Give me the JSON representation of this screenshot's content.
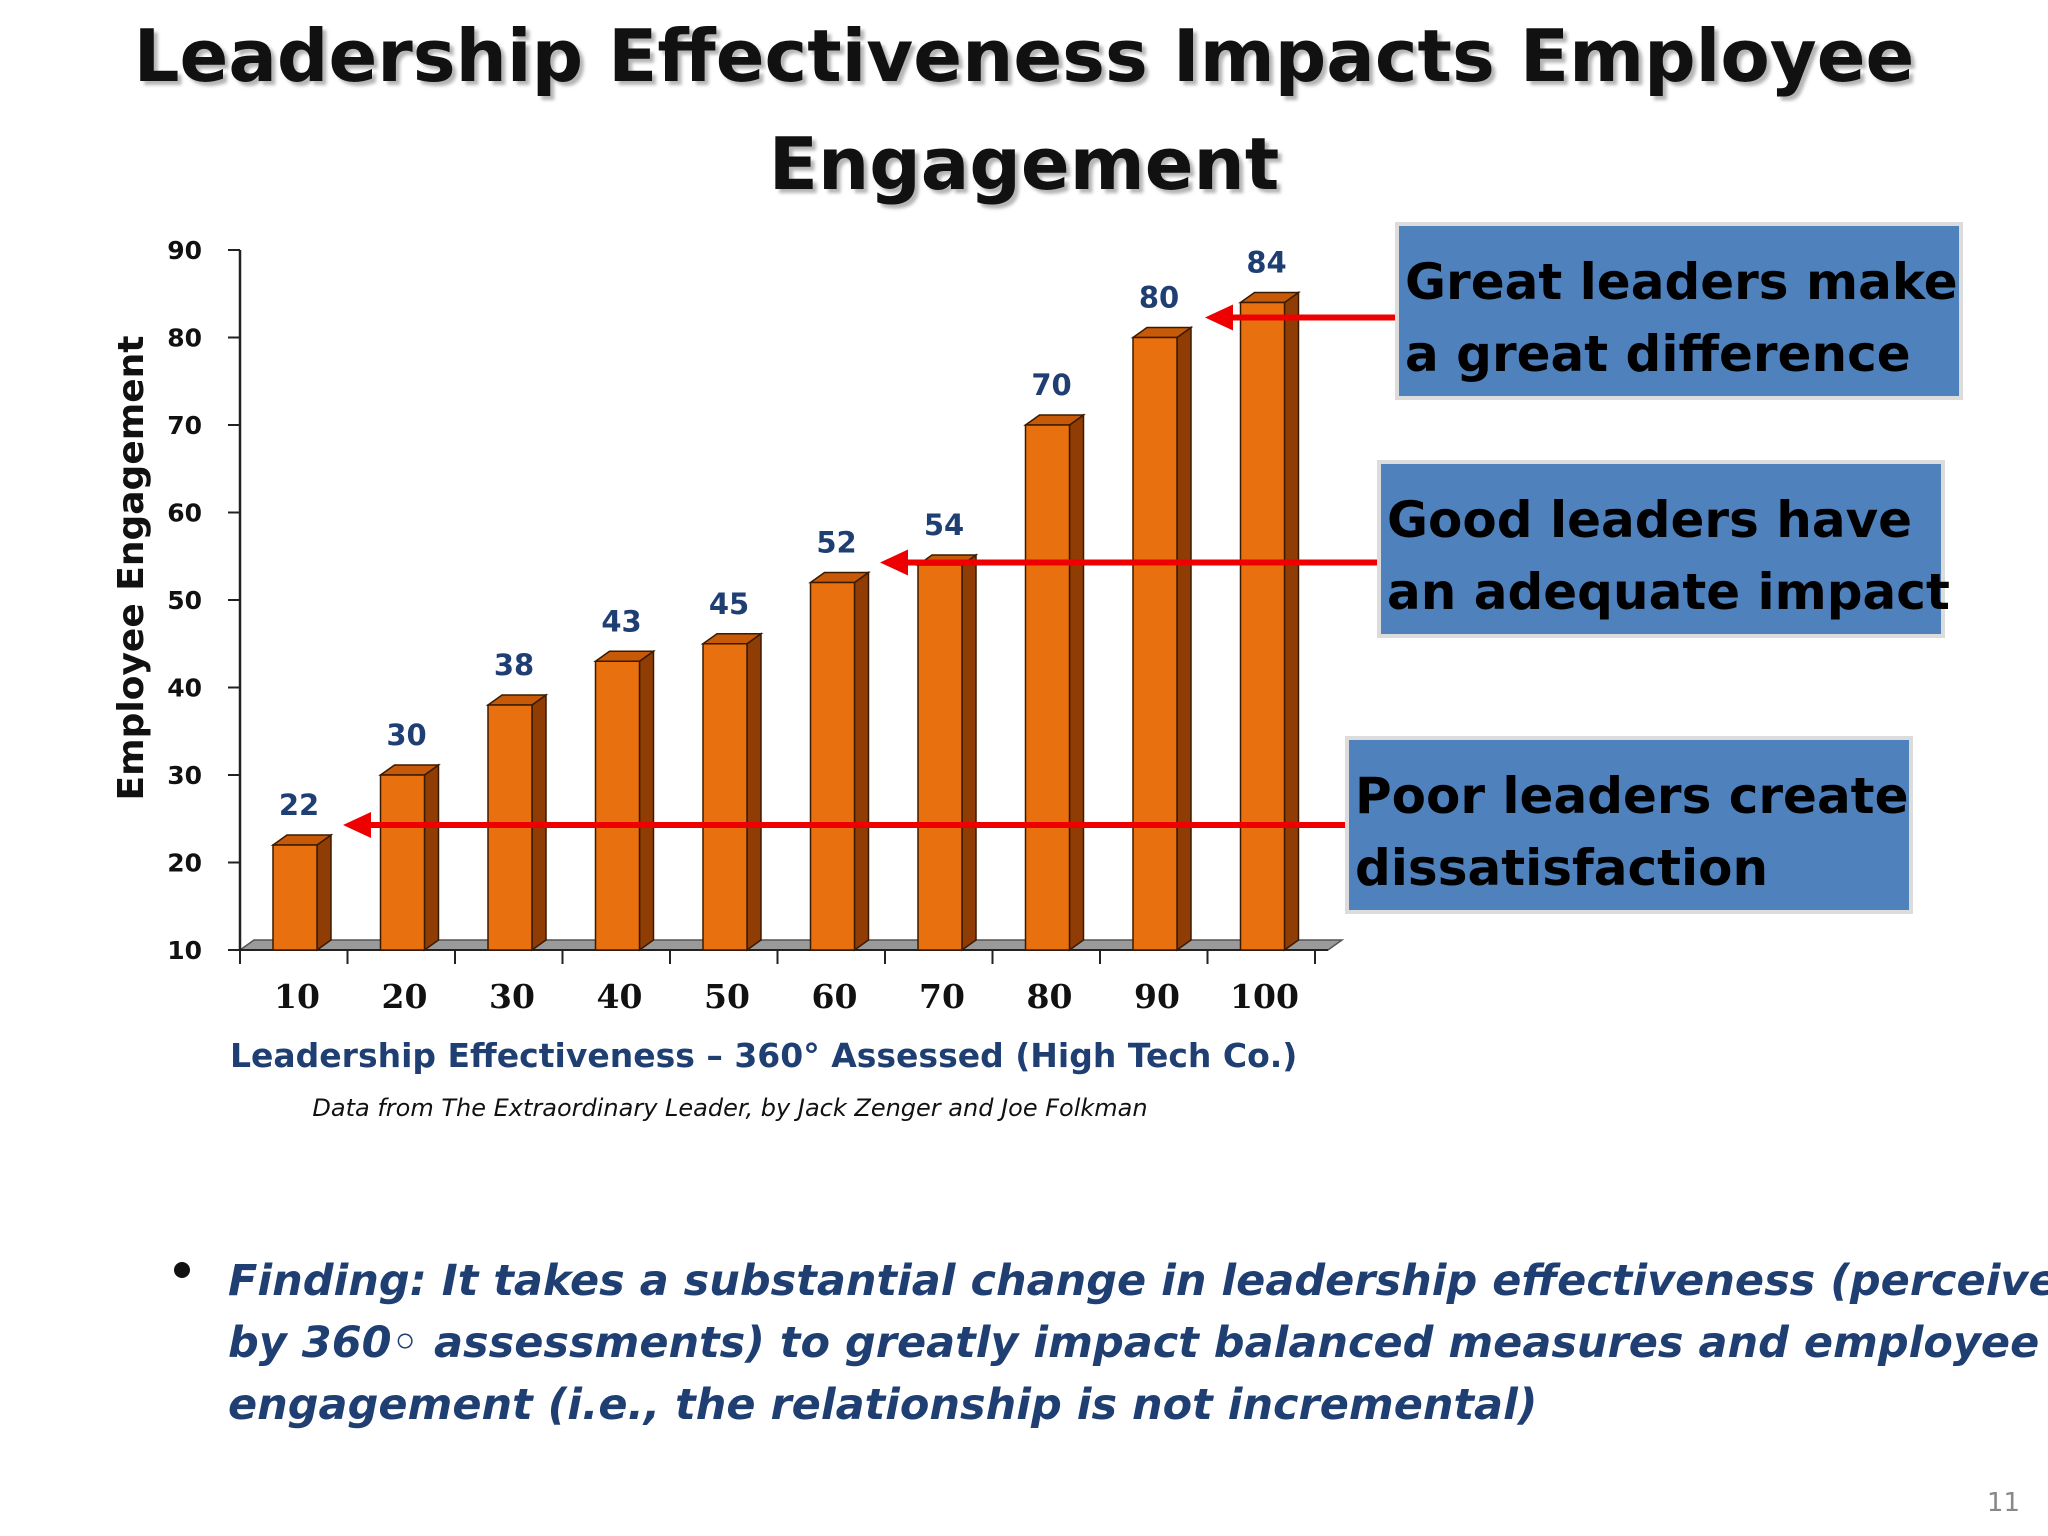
{
  "slide": {
    "title_lines": [
      "Leadership Effectiveness Impacts Employee",
      "Engagement"
    ],
    "callouts": [
      {
        "lines": [
          "Great leaders make",
          "a great difference"
        ],
        "points_to_value": 84
      },
      {
        "lines": [
          "Good leaders have",
          "an adequate impact"
        ],
        "points_to_value": 54
      },
      {
        "lines": [
          "Poor leaders create",
          "dissatisfaction"
        ],
        "points_to_value": 22
      }
    ],
    "finding_lines": [
      "Finding:  It takes a substantial change in leadership effectiveness (perceived",
      "by 360◦ assessments) to greatly impact balanced measures and employee",
      "engagement (i.e., the relationship is not incremental)"
    ],
    "slide_number": "11",
    "colors": {
      "bar_front": "#e8700e",
      "bar_side": "#8f3c05",
      "bar_top": "#c65a08",
      "value_label": "#1f3f73",
      "callout_bg": "#4f81bd",
      "arrow": "#ee0000"
    }
  },
  "chart_data": {
    "type": "bar",
    "categories": [
      "10",
      "20",
      "30",
      "40",
      "50",
      "60",
      "70",
      "80",
      "90",
      "100"
    ],
    "values": [
      22,
      30,
      38,
      43,
      45,
      52,
      54,
      70,
      80,
      84
    ],
    "title": "",
    "xlabel": "Leadership Effectiveness – 360°  Assessed (High Tech Co.)",
    "ylabel": "Employee Engagement",
    "ylim": [
      10,
      90
    ],
    "yticks": [
      "10",
      "20",
      "30",
      "40",
      "50",
      "60",
      "70",
      "80",
      "90"
    ],
    "grid": false,
    "legend": "none",
    "source_note": "Data from The Extraordinary Leader, by Jack Zenger and Joe Folkman"
  }
}
